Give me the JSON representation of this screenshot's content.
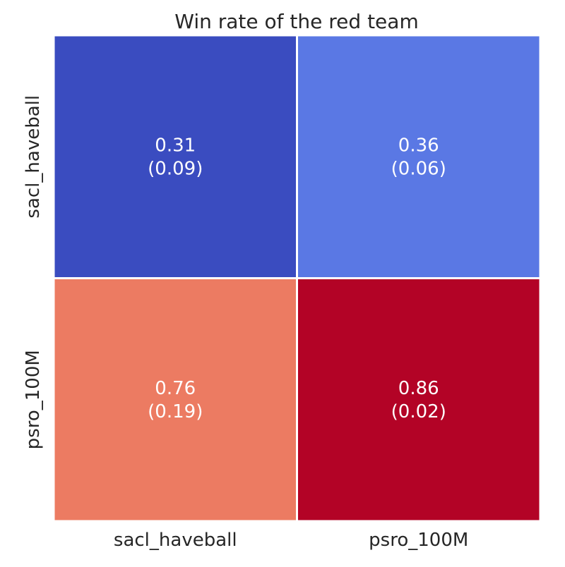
{
  "chart_data": {
    "type": "heatmap",
    "title": "Win rate of the red team",
    "xlabel": "",
    "ylabel": "",
    "x_categories": [
      "sacl_haveball",
      "psro_100M"
    ],
    "y_categories": [
      "sacl_haveball",
      "psro_100M"
    ],
    "values": [
      [
        0.31,
        0.36
      ],
      [
        0.76,
        0.86
      ]
    ],
    "std": [
      [
        0.09,
        0.06
      ],
      [
        0.19,
        0.02
      ]
    ],
    "cell_labels": [
      [
        "0.31",
        "(0.09)",
        "0.36",
        "(0.06)"
      ],
      [
        "0.76",
        "(0.19)",
        "0.86",
        "(0.02)"
      ]
    ],
    "colormap": "coolwarm",
    "cell_colors": [
      [
        "#3a4cc0",
        "#5a78e4"
      ],
      [
        "#ec7b62",
        "#b30326"
      ]
    ],
    "colorbar": false,
    "grid_lines": "white",
    "annotation_color": "#ffffff",
    "text_color": "#262626"
  }
}
